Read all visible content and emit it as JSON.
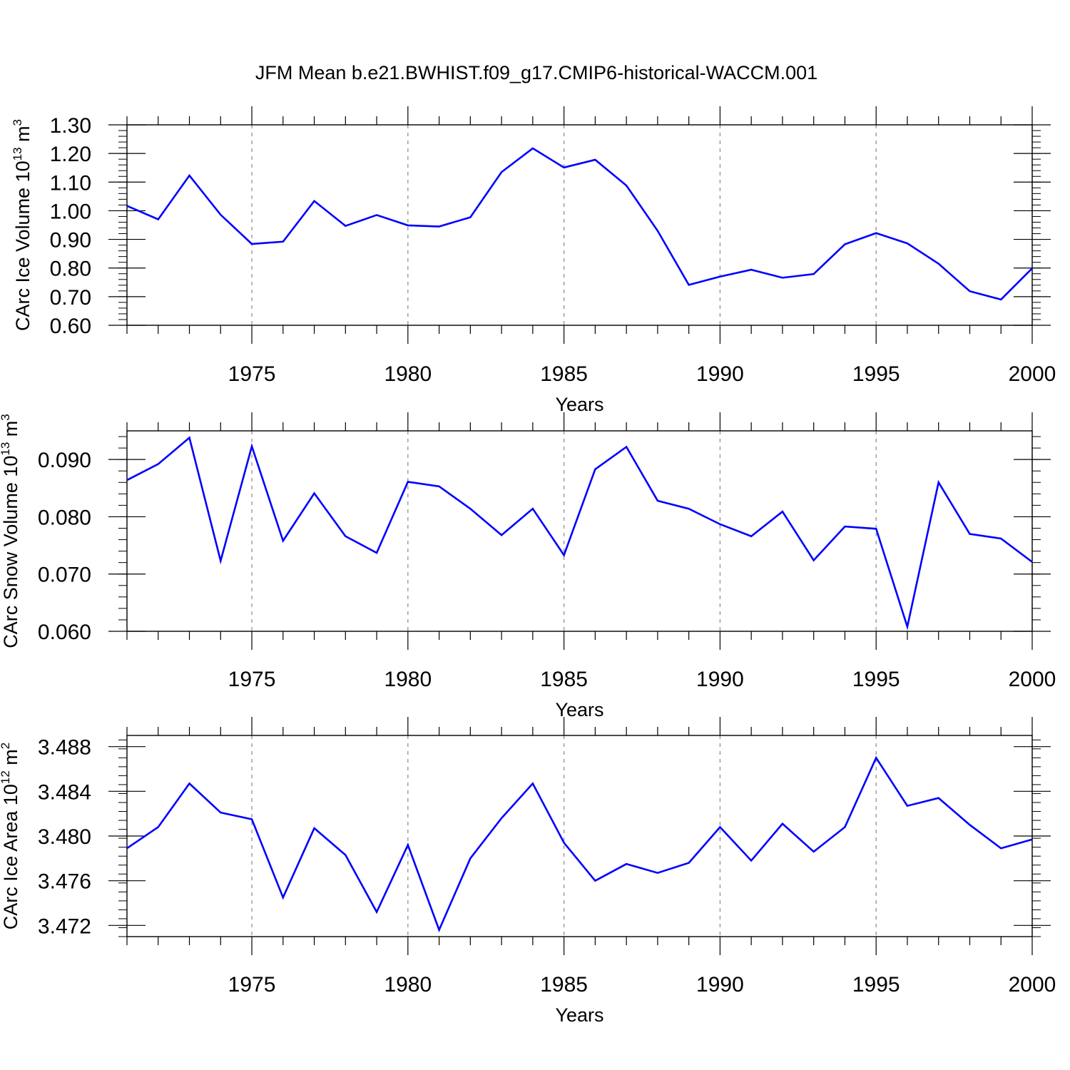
{
  "title": "JFM Mean b.e21.BWHIST.f09_g17.CMIP6-historical-WACCM.001",
  "colors": {
    "line": "#0000ff",
    "axis": "#000000",
    "grid": "#888888"
  },
  "chart_data": [
    {
      "type": "line",
      "ylabel": {
        "base": "CArc Ice Volume 10",
        "exp": "13",
        "unit": " m",
        "unit_exp": "3"
      },
      "xlabel": "Years",
      "xlim": [
        1971,
        2000
      ],
      "ylim": [
        0.6,
        1.3
      ],
      "xticks": [
        1975,
        1980,
        1985,
        1990,
        1995,
        2000
      ],
      "xtick_labels": [
        "1975",
        "1980",
        "1985",
        "1990",
        "1995",
        "2000"
      ],
      "yticks": [
        0.6,
        0.7,
        0.8,
        0.9,
        1.0,
        1.1,
        1.2,
        1.3
      ],
      "ytick_labels": [
        "0.60",
        "0.70",
        "0.80",
        "0.90",
        "1.00",
        "1.10",
        "1.20",
        "1.30"
      ],
      "ytick_minor_step": 0.02,
      "xgrid_dashed": true,
      "x": [
        1971,
        1972,
        1973,
        1974,
        1975,
        1976,
        1977,
        1978,
        1979,
        1980,
        1981,
        1982,
        1983,
        1984,
        1985,
        1986,
        1987,
        1988,
        1989,
        1990,
        1991,
        1992,
        1993,
        1994,
        1995,
        1996,
        1997,
        1998,
        1999,
        2000
      ],
      "series": [
        {
          "values": [
            1.017,
            0.97,
            1.123,
            0.986,
            0.884,
            0.892,
            1.034,
            0.947,
            0.985,
            0.949,
            0.945,
            0.977,
            1.135,
            1.218,
            1.151,
            1.178,
            1.088,
            0.93,
            0.741,
            0.77,
            0.794,
            0.766,
            0.779,
            0.883,
            0.922,
            0.886,
            0.815,
            0.719,
            0.69,
            0.799
          ]
        }
      ]
    },
    {
      "type": "line",
      "ylabel": {
        "base": "CArc Snow Volume 10",
        "exp": "13",
        "unit": " m",
        "unit_exp": "3"
      },
      "xlabel": "Years",
      "xlim": [
        1971,
        2000
      ],
      "ylim": [
        0.06,
        0.095
      ],
      "xticks": [
        1975,
        1980,
        1985,
        1990,
        1995,
        2000
      ],
      "xtick_labels": [
        "1975",
        "1980",
        "1985",
        "1990",
        "1995",
        "2000"
      ],
      "yticks": [
        0.06,
        0.07,
        0.08,
        0.09
      ],
      "ytick_labels": [
        "0.060",
        "0.070",
        "0.080",
        "0.090"
      ],
      "ytick_minor_step": 0.002,
      "xgrid_dashed": true,
      "x": [
        1971,
        1972,
        1973,
        1974,
        1975,
        1976,
        1977,
        1978,
        1979,
        1980,
        1981,
        1982,
        1983,
        1984,
        1985,
        1986,
        1987,
        1988,
        1989,
        1990,
        1991,
        1992,
        1993,
        1994,
        1995,
        1996,
        1997,
        1998,
        1999,
        2000
      ],
      "series": [
        {
          "values": [
            0.0864,
            0.0892,
            0.0938,
            0.0723,
            0.0923,
            0.0758,
            0.0841,
            0.0766,
            0.0737,
            0.0861,
            0.0853,
            0.0814,
            0.0768,
            0.0814,
            0.0733,
            0.0883,
            0.0922,
            0.0828,
            0.0814,
            0.0787,
            0.0766,
            0.0809,
            0.0724,
            0.0783,
            0.0779,
            0.0608,
            0.086,
            0.077,
            0.0762,
            0.0721
          ]
        }
      ]
    },
    {
      "type": "line",
      "ylabel": {
        "base": "CArc Ice Area 10",
        "exp": "12",
        "unit": " m",
        "unit_exp": "2"
      },
      "xlabel": "Years",
      "xlim": [
        1971,
        2000
      ],
      "ylim": [
        3.471,
        3.489
      ],
      "xticks": [
        1975,
        1980,
        1985,
        1990,
        1995,
        2000
      ],
      "xtick_labels": [
        "1975",
        "1980",
        "1985",
        "1990",
        "1995",
        "2000"
      ],
      "yticks": [
        3.472,
        3.476,
        3.48,
        3.484,
        3.488
      ],
      "ytick_labels": [
        "3.472",
        "3.476",
        "3.480",
        "3.484",
        "3.488"
      ],
      "ytick_minor_step": 0.0008,
      "xgrid_dashed": true,
      "x": [
        1971,
        1972,
        1973,
        1974,
        1975,
        1976,
        1977,
        1978,
        1979,
        1980,
        1981,
        1982,
        1983,
        1984,
        1985,
        1986,
        1987,
        1988,
        1989,
        1990,
        1991,
        1992,
        1993,
        1994,
        1995,
        1996,
        1997,
        1998,
        1999,
        2000
      ],
      "series": [
        {
          "values": [
            3.4789,
            3.4808,
            3.4847,
            3.4821,
            3.4815,
            3.4745,
            3.4807,
            3.4783,
            3.4732,
            3.4792,
            3.4716,
            3.478,
            3.4816,
            3.4847,
            3.4794,
            3.476,
            3.4775,
            3.4767,
            3.4776,
            3.4808,
            3.4778,
            3.4811,
            3.4786,
            3.4808,
            3.487,
            3.4827,
            3.4834,
            3.481,
            3.4789,
            3.4797
          ]
        }
      ]
    }
  ]
}
